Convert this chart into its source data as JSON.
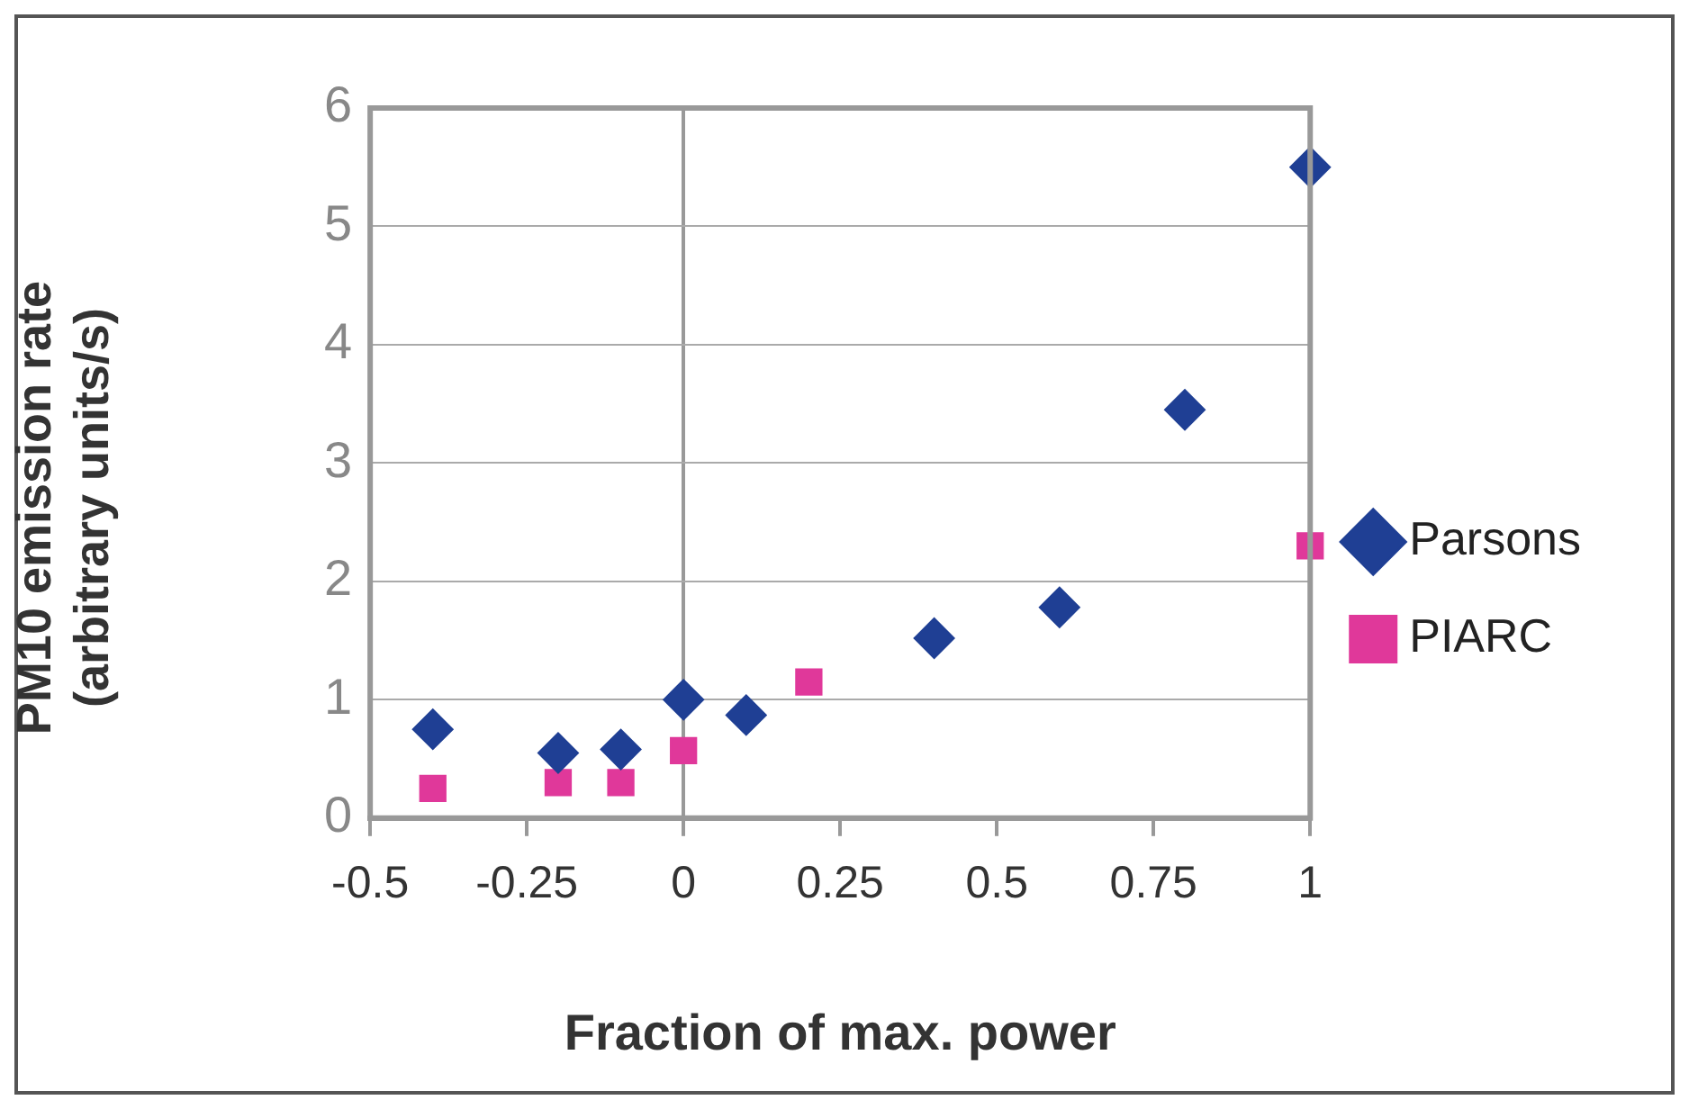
{
  "chart_data": {
    "type": "scatter",
    "xlabel": "Fraction of max. power",
    "ylabel": "PM10 emission rate (arbitrary units/s)",
    "xlim": [
      -0.5,
      1
    ],
    "xticks": [
      -0.5,
      -0.25,
      0,
      0.25,
      0.5,
      0.75,
      1
    ],
    "ylim": [
      0,
      6
    ],
    "yticks": [
      0,
      1,
      2,
      3,
      4,
      5,
      6
    ],
    "grid": "y",
    "legend": "right",
    "series": [
      {
        "name": "Parsons",
        "color": "#1f3f94",
        "marker": "diamond",
        "x": [
          -0.4,
          -0.2,
          -0.1,
          0,
          0.1,
          0.4,
          0.6,
          0.8,
          1
        ],
        "values": [
          0.75,
          0.55,
          0.58,
          1.0,
          0.87,
          1.52,
          1.78,
          3.45,
          5.5
        ]
      },
      {
        "name": "PIARC",
        "color": "#e0389a",
        "marker": "square",
        "x": [
          -0.4,
          -0.2,
          -0.1,
          0,
          0.2,
          1
        ],
        "values": [
          0.25,
          0.3,
          0.3,
          0.57,
          1.15,
          2.3
        ]
      }
    ]
  }
}
